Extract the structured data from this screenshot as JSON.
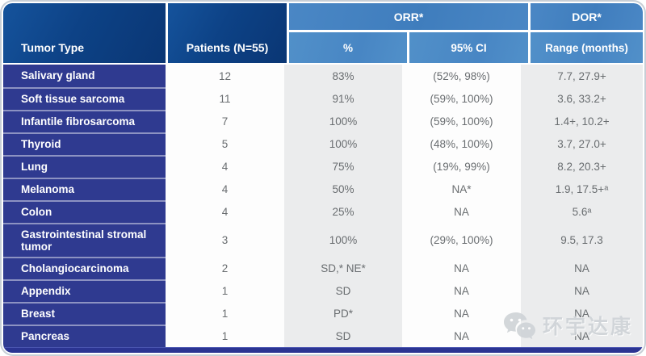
{
  "chart_data": {
    "type": "table",
    "title": "",
    "columns": [
      "Tumor Type",
      "Patients (N=55)",
      "ORR* %",
      "ORR* 95% CI",
      "DOR* Range (months)"
    ],
    "rows": [
      [
        "Salivary gland",
        "12",
        "83%",
        "(52%, 98%)",
        "7.7, 27.9+"
      ],
      [
        "Soft tissue sarcoma",
        "11",
        "91%",
        "(59%, 100%)",
        "3.6, 33.2+"
      ],
      [
        "Infantile fibrosarcoma",
        "7",
        "100%",
        "(59%, 100%)",
        "1.4+, 10.2+"
      ],
      [
        "Thyroid",
        "5",
        "100%",
        "(48%, 100%)",
        "3.7, 27.0+"
      ],
      [
        "Lung",
        "4",
        "75%",
        "(19%, 99%)",
        "8.2, 20.3+"
      ],
      [
        "Melanoma",
        "4",
        "50%",
        "NA*",
        "1.9, 17.5+ᵃ"
      ],
      [
        "Colon",
        "4",
        "25%",
        "NA",
        "5.6ᵃ"
      ],
      [
        "Gastrointestinal stromal tumor",
        "3",
        "100%",
        "(29%, 100%)",
        "9.5, 17.3"
      ],
      [
        "Cholangiocarcinoma",
        "2",
        "SD,* NE*",
        "NA",
        "NA"
      ],
      [
        "Appendix",
        "1",
        "SD",
        "NA",
        "NA"
      ],
      [
        "Breast",
        "1",
        "PD*",
        "NA",
        "NA"
      ],
      [
        "Pancreas",
        "1",
        "SD",
        "NA",
        "NA"
      ]
    ]
  },
  "header": {
    "tumor_type": "Tumor Type",
    "patients": "Patients (N=55)",
    "orr": "ORR*",
    "orr_pct": "%",
    "orr_ci": "95% CI",
    "dor": "DOR*",
    "dor_range": "Range (months)"
  },
  "watermark": {
    "text": "环宇达康",
    "icon": "wechat-icon"
  },
  "colors": {
    "header_dark_blue": "#0d4286",
    "header_band_blue": "#4583c2",
    "row_label_indigo": "#2f3a90",
    "stripe_gray": "#ebeced",
    "stripe_white": "#fdfdfd",
    "bottom_bar_navy": "#2b3492",
    "data_text_gray": "#696d70",
    "watermark_gray": "#cfd3d7"
  }
}
